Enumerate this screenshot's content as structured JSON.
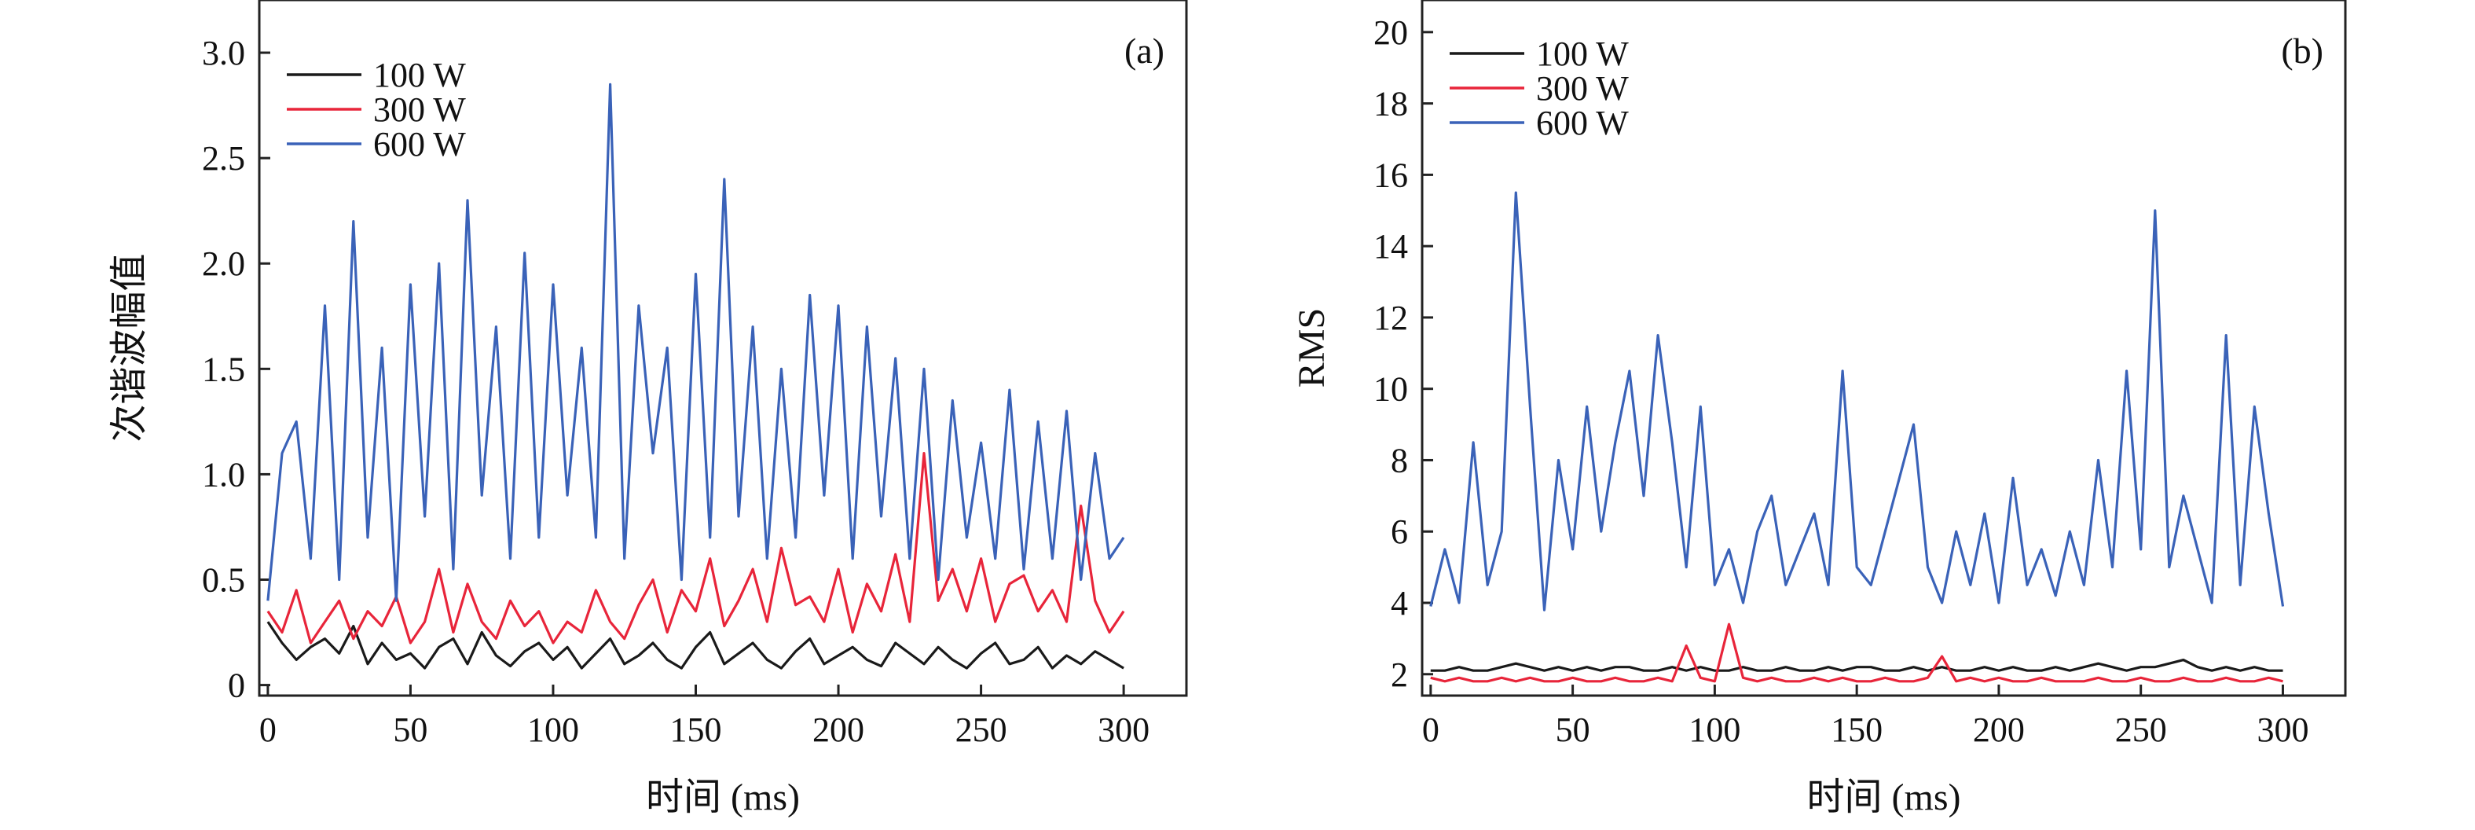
{
  "figure": {
    "panels": [
      "a",
      "b"
    ]
  },
  "chart_data": [
    {
      "type": "line",
      "panel_label": "(a)",
      "xlabel": "时间 (ms)",
      "ylabel": "次谐波幅值",
      "xlim": [
        -3,
        322
      ],
      "ylim": [
        -0.05,
        3.25
      ],
      "x_ticks": [
        0,
        50,
        100,
        150,
        200,
        250,
        300
      ],
      "x_tick_labels": [
        "0",
        "50",
        "100",
        "150",
        "200",
        "250",
        "300"
      ],
      "y_ticks": [
        0,
        0.5,
        1.0,
        1.5,
        2.0,
        2.5,
        3.0
      ],
      "y_tick_labels": [
        "0",
        "0.5",
        "1.0",
        "1.5",
        "2.0",
        "2.5",
        "3.0"
      ],
      "grid": false,
      "legend_position": "top-left",
      "x": [
        0,
        5,
        10,
        15,
        20,
        25,
        30,
        35,
        40,
        45,
        50,
        55,
        60,
        65,
        70,
        75,
        80,
        85,
        90,
        95,
        100,
        105,
        110,
        115,
        120,
        125,
        130,
        135,
        140,
        145,
        150,
        155,
        160,
        165,
        170,
        175,
        180,
        185,
        190,
        195,
        200,
        205,
        210,
        215,
        220,
        225,
        230,
        235,
        240,
        245,
        250,
        255,
        260,
        265,
        270,
        275,
        280,
        285,
        290,
        295,
        300
      ],
      "series": [
        {
          "name": "100 W",
          "color": "#1a1a1a",
          "values": [
            0.3,
            0.2,
            0.12,
            0.18,
            0.22,
            0.15,
            0.28,
            0.1,
            0.2,
            0.12,
            0.15,
            0.08,
            0.18,
            0.22,
            0.1,
            0.25,
            0.14,
            0.09,
            0.16,
            0.2,
            0.12,
            0.18,
            0.08,
            0.15,
            0.22,
            0.1,
            0.14,
            0.2,
            0.12,
            0.08,
            0.18,
            0.25,
            0.1,
            0.15,
            0.2,
            0.12,
            0.08,
            0.16,
            0.22,
            0.1,
            0.14,
            0.18,
            0.12,
            0.09,
            0.2,
            0.15,
            0.1,
            0.18,
            0.12,
            0.08,
            0.15,
            0.2,
            0.1,
            0.12,
            0.18,
            0.08,
            0.14,
            0.1,
            0.16,
            0.12,
            0.08
          ]
        },
        {
          "name": "300 W",
          "color": "#e8253a",
          "values": [
            0.35,
            0.25,
            0.45,
            0.2,
            0.3,
            0.4,
            0.22,
            0.35,
            0.28,
            0.42,
            0.2,
            0.3,
            0.55,
            0.25,
            0.48,
            0.3,
            0.22,
            0.4,
            0.28,
            0.35,
            0.2,
            0.3,
            0.25,
            0.45,
            0.3,
            0.22,
            0.38,
            0.5,
            0.25,
            0.45,
            0.35,
            0.6,
            0.28,
            0.4,
            0.55,
            0.3,
            0.65,
            0.38,
            0.42,
            0.3,
            0.55,
            0.25,
            0.48,
            0.35,
            0.62,
            0.3,
            1.1,
            0.4,
            0.55,
            0.35,
            0.6,
            0.3,
            0.48,
            0.52,
            0.35,
            0.45,
            0.3,
            0.85,
            0.4,
            0.25,
            0.35
          ]
        },
        {
          "name": "600 W",
          "color": "#3a62b8",
          "values": [
            0.4,
            1.1,
            1.25,
            0.6,
            1.8,
            0.5,
            2.2,
            0.7,
            1.6,
            0.4,
            1.9,
            0.8,
            2.0,
            0.55,
            2.3,
            0.9,
            1.7,
            0.6,
            2.05,
            0.7,
            1.9,
            0.9,
            1.6,
            0.7,
            2.85,
            0.6,
            1.8,
            1.1,
            1.6,
            0.5,
            1.95,
            0.7,
            2.4,
            0.8,
            1.7,
            0.6,
            1.5,
            0.7,
            1.85,
            0.9,
            1.8,
            0.6,
            1.7,
            0.8,
            1.55,
            0.6,
            1.5,
            0.5,
            1.35,
            0.7,
            1.15,
            0.6,
            1.4,
            0.55,
            1.25,
            0.6,
            1.3,
            0.5,
            1.1,
            0.6,
            0.7
          ]
        }
      ]
    },
    {
      "type": "line",
      "panel_label": "(b)",
      "xlabel": "时间 (ms)",
      "ylabel": "RMS",
      "xlim": [
        -3,
        322
      ],
      "ylim": [
        1.4,
        20.9
      ],
      "x_ticks": [
        0,
        50,
        100,
        150,
        200,
        250,
        300
      ],
      "x_tick_labels": [
        "0",
        "50",
        "100",
        "150",
        "200",
        "250",
        "300"
      ],
      "y_ticks": [
        2,
        4,
        6,
        8,
        10,
        12,
        14,
        16,
        18,
        20
      ],
      "y_tick_labels": [
        "2",
        "4",
        "6",
        "8",
        "10",
        "12",
        "14",
        "16",
        "18",
        "20"
      ],
      "grid": false,
      "legend_position": "top-left",
      "x": [
        0,
        5,
        10,
        15,
        20,
        25,
        30,
        35,
        40,
        45,
        50,
        55,
        60,
        65,
        70,
        75,
        80,
        85,
        90,
        95,
        100,
        105,
        110,
        115,
        120,
        125,
        130,
        135,
        140,
        145,
        150,
        155,
        160,
        165,
        170,
        175,
        180,
        185,
        190,
        195,
        200,
        205,
        210,
        215,
        220,
        225,
        230,
        235,
        240,
        245,
        250,
        255,
        260,
        265,
        270,
        275,
        280,
        285,
        290,
        295,
        300
      ],
      "series": [
        {
          "name": "100 W",
          "color": "#1a1a1a",
          "values": [
            2.1,
            2.1,
            2.2,
            2.1,
            2.1,
            2.2,
            2.3,
            2.2,
            2.1,
            2.2,
            2.1,
            2.2,
            2.1,
            2.2,
            2.2,
            2.1,
            2.1,
            2.2,
            2.1,
            2.2,
            2.1,
            2.1,
            2.2,
            2.1,
            2.1,
            2.2,
            2.1,
            2.1,
            2.2,
            2.1,
            2.2,
            2.2,
            2.1,
            2.1,
            2.2,
            2.1,
            2.2,
            2.1,
            2.1,
            2.2,
            2.1,
            2.2,
            2.1,
            2.1,
            2.2,
            2.1,
            2.2,
            2.3,
            2.2,
            2.1,
            2.2,
            2.2,
            2.3,
            2.4,
            2.2,
            2.1,
            2.2,
            2.1,
            2.2,
            2.1,
            2.1
          ]
        },
        {
          "name": "300 W",
          "color": "#e8253a",
          "values": [
            1.9,
            1.8,
            1.9,
            1.8,
            1.8,
            1.9,
            1.8,
            1.9,
            1.8,
            1.8,
            1.9,
            1.8,
            1.8,
            1.9,
            1.8,
            1.8,
            1.9,
            1.8,
            2.8,
            1.9,
            1.8,
            3.4,
            1.9,
            1.8,
            1.9,
            1.8,
            1.8,
            1.9,
            1.8,
            1.9,
            1.8,
            1.8,
            1.9,
            1.8,
            1.8,
            1.9,
            2.5,
            1.8,
            1.9,
            1.8,
            1.9,
            1.8,
            1.8,
            1.9,
            1.8,
            1.8,
            1.8,
            1.9,
            1.8,
            1.8,
            1.9,
            1.8,
            1.8,
            1.9,
            1.8,
            1.8,
            1.9,
            1.8,
            1.8,
            1.9,
            1.8
          ]
        },
        {
          "name": "600 W",
          "color": "#3a62b8",
          "values": [
            3.9,
            5.5,
            4.0,
            8.5,
            4.5,
            6.0,
            15.5,
            9.5,
            3.8,
            8.0,
            5.5,
            9.5,
            6.0,
            8.5,
            10.5,
            7.0,
            11.5,
            8.5,
            5.0,
            9.5,
            4.5,
            5.5,
            4.0,
            6.0,
            7.0,
            4.5,
            5.5,
            6.5,
            4.5,
            10.5,
            5.0,
            4.5,
            6.0,
            7.5,
            9.0,
            5.0,
            4.0,
            6.0,
            4.5,
            6.5,
            4.0,
            7.5,
            4.5,
            5.5,
            4.2,
            6.0,
            4.5,
            8.0,
            5.0,
            10.5,
            5.5,
            15.0,
            5.0,
            7.0,
            5.5,
            4.0,
            11.5,
            4.5,
            9.5,
            6.5,
            3.9
          ]
        }
      ]
    }
  ]
}
